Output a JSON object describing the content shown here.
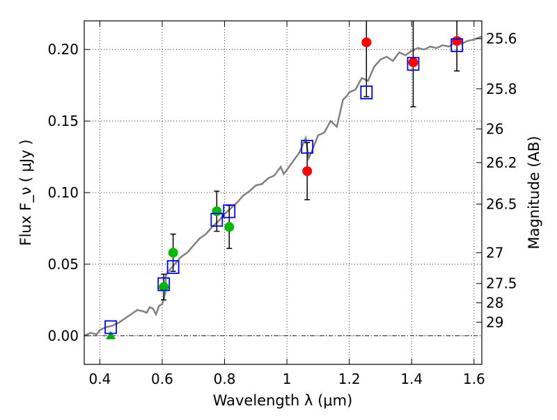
{
  "chart_data": {
    "type": "scatter",
    "xlabel": "Wavelength  λ (μm)",
    "ylabel": "Flux  F_ν  ( μJy )",
    "y2label": "Magnitude (AB)",
    "xlim": [
      0.35,
      1.625
    ],
    "ylim": [
      -0.02,
      0.22
    ],
    "grid": true,
    "x_ticks": [
      0.4,
      0.6,
      0.8,
      1.0,
      1.2,
      1.4,
      1.6
    ],
    "x_tick_labels": [
      "0.4",
      "0.6",
      "0.8",
      "1",
      "1.2",
      "1.4",
      "1.6"
    ],
    "y_ticks": [
      0.0,
      0.05,
      0.1,
      0.15,
      0.2
    ],
    "y_tick_labels": [
      "0.00",
      "0.05",
      "0.10",
      "0.15",
      "0.20"
    ],
    "y2_ticks": [
      {
        "flux": 0.2075,
        "label": "25.6"
      },
      {
        "flux": 0.1725,
        "label": "25.8"
      },
      {
        "flux": 0.1445,
        "label": "26"
      },
      {
        "flux": 0.121,
        "label": "26.2"
      },
      {
        "flux": 0.092,
        "label": "26.5"
      },
      {
        "flux": 0.058,
        "label": "27"
      },
      {
        "flux": 0.0365,
        "label": "27.5"
      },
      {
        "flux": 0.023,
        "label": "28"
      },
      {
        "flux": 0.0095,
        "label": "29"
      }
    ],
    "series": [
      {
        "kind": "model_spectrum",
        "color": "#808080",
        "x": [
          0.35,
          0.37,
          0.39,
          0.4,
          0.42,
          0.44,
          0.46,
          0.48,
          0.5,
          0.52,
          0.54,
          0.55,
          0.56,
          0.57,
          0.58,
          0.59,
          0.6,
          0.61,
          0.612,
          0.62,
          0.64,
          0.66,
          0.68,
          0.7,
          0.72,
          0.74,
          0.76,
          0.78,
          0.8,
          0.82,
          0.84,
          0.86,
          0.88,
          0.9,
          0.92,
          0.94,
          0.96,
          0.98,
          0.99,
          1.0,
          1.02,
          1.04,
          1.06,
          1.07,
          1.08,
          1.1,
          1.12,
          1.14,
          1.16,
          1.18,
          1.19,
          1.2,
          1.22,
          1.24,
          1.26,
          1.28,
          1.3,
          1.32,
          1.34,
          1.36,
          1.38,
          1.4,
          1.42,
          1.44,
          1.46,
          1.48,
          1.5,
          1.52,
          1.54,
          1.56,
          1.58,
          1.6,
          1.625
        ],
        "y": [
          0.0,
          0.002,
          0.001,
          0.004,
          0.006,
          0.007,
          0.009,
          0.012,
          0.015,
          0.018,
          0.017,
          0.016,
          0.02,
          0.019,
          0.015,
          0.021,
          0.022,
          0.03,
          0.042,
          0.045,
          0.05,
          0.055,
          0.058,
          0.063,
          0.068,
          0.071,
          0.076,
          0.08,
          0.085,
          0.089,
          0.093,
          0.098,
          0.101,
          0.105,
          0.106,
          0.11,
          0.112,
          0.118,
          0.113,
          0.116,
          0.122,
          0.128,
          0.138,
          0.124,
          0.129,
          0.14,
          0.142,
          0.15,
          0.146,
          0.165,
          0.167,
          0.17,
          0.172,
          0.18,
          0.178,
          0.188,
          0.193,
          0.195,
          0.192,
          0.198,
          0.196,
          0.199,
          0.201,
          0.2,
          0.202,
          0.201,
          0.203,
          0.202,
          0.205,
          0.204,
          0.206,
          0.207,
          0.209
        ]
      },
      {
        "kind": "observed_ground",
        "color": "#00bb00",
        "marker": "circle",
        "points": [
          {
            "x": 0.605,
            "y": 0.034,
            "err": 0.009
          },
          {
            "x": 0.635,
            "y": 0.058,
            "err": 0.013
          },
          {
            "x": 0.775,
            "y": 0.087,
            "err": 0.014
          },
          {
            "x": 0.815,
            "y": 0.076,
            "err": 0.015
          }
        ]
      },
      {
        "kind": "upper_limit",
        "color": "#00aa00",
        "marker": "triangle",
        "points": [
          {
            "x": 0.435,
            "y": 0.0
          }
        ]
      },
      {
        "kind": "observed_hst",
        "color": "#ff0000",
        "marker": "circle",
        "points": [
          {
            "x": 1.065,
            "y": 0.115,
            "err": 0.02
          },
          {
            "x": 1.255,
            "y": 0.205,
            "err": 0.038
          },
          {
            "x": 1.405,
            "y": 0.191,
            "err": 0.031
          },
          {
            "x": 1.545,
            "y": 0.206,
            "err": 0.021
          }
        ]
      },
      {
        "kind": "model_photometry",
        "color": "#0000ff",
        "marker": "square",
        "points": [
          {
            "x": 0.435,
            "y": 0.006
          },
          {
            "x": 0.605,
            "y": 0.036
          },
          {
            "x": 0.635,
            "y": 0.048
          },
          {
            "x": 0.775,
            "y": 0.081
          },
          {
            "x": 0.815,
            "y": 0.087
          },
          {
            "x": 1.065,
            "y": 0.132
          },
          {
            "x": 1.255,
            "y": 0.17
          },
          {
            "x": 1.405,
            "y": 0.19
          },
          {
            "x": 1.545,
            "y": 0.203
          }
        ]
      }
    ]
  }
}
